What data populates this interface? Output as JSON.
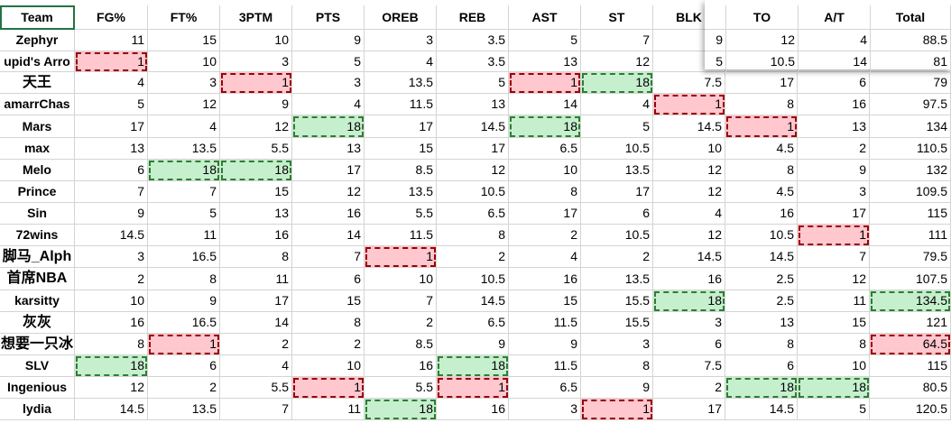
{
  "columns": [
    "Team",
    "FG%",
    "FT%",
    "3PTM",
    "PTS",
    "OREB",
    "REB",
    "AST",
    "ST",
    "BLK",
    "TO",
    "A/T",
    "Total"
  ],
  "rows": [
    {
      "team": "Zephyr",
      "values": [
        "11",
        "15",
        "10",
        "9",
        "3",
        "3.5",
        "5",
        "7",
        "9",
        "12",
        "4",
        "88.5"
      ],
      "hl": [
        "",
        "",
        "",
        "",
        "",
        "",
        "",
        "",
        "",
        "",
        "",
        ""
      ]
    },
    {
      "team": "upid's Arro",
      "values": [
        "1",
        "10",
        "3",
        "5",
        "4",
        "3.5",
        "13",
        "12",
        "5",
        "10.5",
        "14",
        "81"
      ],
      "hl": [
        "r",
        "",
        "",
        "",
        "",
        "",
        "",
        "",
        "",
        "",
        "",
        ""
      ]
    },
    {
      "team": "天王",
      "values": [
        "4",
        "3",
        "1",
        "3",
        "13.5",
        "5",
        "1",
        "18",
        "7.5",
        "17",
        "6",
        "79"
      ],
      "hl": [
        "",
        "",
        "r",
        "",
        "",
        "",
        "r",
        "g",
        "",
        "",
        "",
        ""
      ]
    },
    {
      "team": "amarrChas",
      "values": [
        "5",
        "12",
        "9",
        "4",
        "11.5",
        "13",
        "14",
        "4",
        "1",
        "8",
        "16",
        "97.5"
      ],
      "hl": [
        "",
        "",
        "",
        "",
        "",
        "",
        "",
        "",
        "r",
        "",
        "",
        ""
      ]
    },
    {
      "team": "Mars",
      "values": [
        "17",
        "4",
        "12",
        "18",
        "17",
        "14.5",
        "18",
        "5",
        "14.5",
        "1",
        "13",
        "134"
      ],
      "hl": [
        "",
        "",
        "",
        "g",
        "",
        "",
        "g",
        "",
        "",
        "r",
        "",
        ""
      ]
    },
    {
      "team": "max",
      "values": [
        "13",
        "13.5",
        "5.5",
        "13",
        "15",
        "17",
        "6.5",
        "10.5",
        "10",
        "4.5",
        "2",
        "110.5"
      ],
      "hl": [
        "",
        "",
        "",
        "",
        "",
        "",
        "",
        "",
        "",
        "",
        "",
        ""
      ]
    },
    {
      "team": "Melo",
      "values": [
        "6",
        "18",
        "18",
        "17",
        "8.5",
        "12",
        "10",
        "13.5",
        "12",
        "8",
        "9",
        "132"
      ],
      "hl": [
        "",
        "g",
        "g",
        "",
        "",
        "",
        "",
        "",
        "",
        "",
        "",
        ""
      ]
    },
    {
      "team": "Prince",
      "values": [
        "7",
        "7",
        "15",
        "12",
        "13.5",
        "10.5",
        "8",
        "17",
        "12",
        "4.5",
        "3",
        "109.5"
      ],
      "hl": [
        "",
        "",
        "",
        "",
        "",
        "",
        "",
        "",
        "",
        "",
        "",
        ""
      ]
    },
    {
      "team": "Sin",
      "values": [
        "9",
        "5",
        "13",
        "16",
        "5.5",
        "6.5",
        "17",
        "6",
        "4",
        "16",
        "17",
        "115"
      ],
      "hl": [
        "",
        "",
        "",
        "",
        "",
        "",
        "",
        "",
        "",
        "",
        "",
        ""
      ]
    },
    {
      "team": "72wins",
      "values": [
        "14.5",
        "11",
        "16",
        "14",
        "11.5",
        "8",
        "2",
        "10.5",
        "12",
        "10.5",
        "1",
        "111"
      ],
      "hl": [
        "",
        "",
        "",
        "",
        "",
        "",
        "",
        "",
        "",
        "",
        "r",
        ""
      ]
    },
    {
      "team": "脚马_Alph",
      "values": [
        "3",
        "16.5",
        "8",
        "7",
        "1",
        "2",
        "4",
        "2",
        "14.5",
        "14.5",
        "7",
        "79.5"
      ],
      "hl": [
        "",
        "",
        "",
        "",
        "r",
        "",
        "",
        "",
        "",
        "",
        "",
        ""
      ]
    },
    {
      "team": "首席NBA",
      "values": [
        "2",
        "8",
        "11",
        "6",
        "10",
        "10.5",
        "16",
        "13.5",
        "16",
        "2.5",
        "12",
        "107.5"
      ],
      "hl": [
        "",
        "",
        "",
        "",
        "",
        "",
        "",
        "",
        "",
        "",
        "",
        ""
      ]
    },
    {
      "team": "karsitty",
      "values": [
        "10",
        "9",
        "17",
        "15",
        "7",
        "14.5",
        "15",
        "15.5",
        "18",
        "2.5",
        "11",
        "134.5"
      ],
      "hl": [
        "",
        "",
        "",
        "",
        "",
        "",
        "",
        "",
        "g",
        "",
        "",
        "g"
      ]
    },
    {
      "team": "灰灰",
      "values": [
        "16",
        "16.5",
        "14",
        "8",
        "2",
        "6.5",
        "11.5",
        "15.5",
        "3",
        "13",
        "15",
        "121"
      ],
      "hl": [
        "",
        "",
        "",
        "",
        "",
        "",
        "",
        "",
        "",
        "",
        "",
        ""
      ]
    },
    {
      "team": "想要一只冰",
      "values": [
        "8",
        "1",
        "2",
        "2",
        "8.5",
        "9",
        "9",
        "3",
        "6",
        "8",
        "8",
        "64.5"
      ],
      "hl": [
        "",
        "r",
        "",
        "",
        "",
        "",
        "",
        "",
        "",
        "",
        "",
        "r"
      ]
    },
    {
      "team": "SLV",
      "values": [
        "18",
        "6",
        "4",
        "10",
        "16",
        "18",
        "11.5",
        "8",
        "7.5",
        "6",
        "10",
        "115"
      ],
      "hl": [
        "g",
        "",
        "",
        "",
        "",
        "g",
        "",
        "",
        "",
        "",
        "",
        ""
      ]
    },
    {
      "team": "Ingenious",
      "values": [
        "12",
        "2",
        "5.5",
        "1",
        "5.5",
        "1",
        "6.5",
        "9",
        "2",
        "18",
        "18",
        "80.5"
      ],
      "hl": [
        "",
        "",
        "",
        "r",
        "",
        "r",
        "",
        "",
        "",
        "g",
        "g",
        ""
      ]
    },
    {
      "team": "lydia",
      "values": [
        "14.5",
        "13.5",
        "7",
        "11",
        "18",
        "16",
        "3",
        "1",
        "17",
        "14.5",
        "5",
        "120.5"
      ],
      "hl": [
        "",
        "",
        "",
        "",
        "g",
        "",
        "",
        "r",
        "",
        "",
        "",
        ""
      ]
    }
  ],
  "popup": {
    "columns": [
      "TO",
      "A/T",
      "Total"
    ],
    "rows": [
      [
        "12",
        "4",
        "88.5"
      ],
      [
        "10.5",
        "14",
        "81"
      ]
    ]
  }
}
